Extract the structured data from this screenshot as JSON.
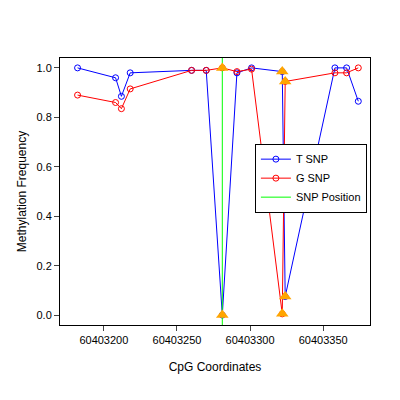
{
  "chart_data": {
    "type": "line",
    "x_label": "CpG Coordinates",
    "y_label": "Methylation Frequency",
    "x": [
      60403182,
      60403208,
      60403212,
      60403218,
      60403260,
      60403270,
      60403281,
      60403291,
      60403301,
      60403322,
      60403324,
      60403358,
      60403366,
      60403374
    ],
    "series": [
      {
        "name": "T SNP",
        "color": "#0000ff",
        "marker": "circle-open",
        "values": [
          1.0,
          0.96,
          0.885,
          0.98,
          0.99,
          0.99,
          0.0,
          0.98,
          1.0,
          0.985,
          0.075,
          1.0,
          1.0,
          0.865
        ]
      },
      {
        "name": "G SNP",
        "color": "#ff0000",
        "marker": "circle-open",
        "values": [
          0.89,
          0.86,
          0.835,
          0.915,
          0.99,
          0.99,
          1.0,
          0.985,
          0.995,
          0.005,
          0.945,
          0.98,
          0.98,
          1.0
        ]
      }
    ],
    "snp_position": {
      "name": "SNP Position",
      "x": 60403281,
      "color": "#00ff00"
    },
    "snp_cpgs": {
      "x": [
        60403281,
        60403322,
        60403324
      ],
      "color": "#ffa500",
      "marker": "triangle-up"
    },
    "xlim": [
      60403170,
      60403382
    ],
    "xticks": [
      60403200,
      60403250,
      60403300,
      60403350
    ],
    "ylim": [
      -0.04,
      1.04
    ],
    "yticks": [
      0,
      0.2,
      0.4,
      0.6,
      0.8,
      1
    ],
    "yticklabels_fixed": [
      "0.0",
      "0.2",
      "0.4",
      "0.6",
      "0.8",
      "1.0"
    ],
    "grid": false,
    "legend": "right"
  }
}
